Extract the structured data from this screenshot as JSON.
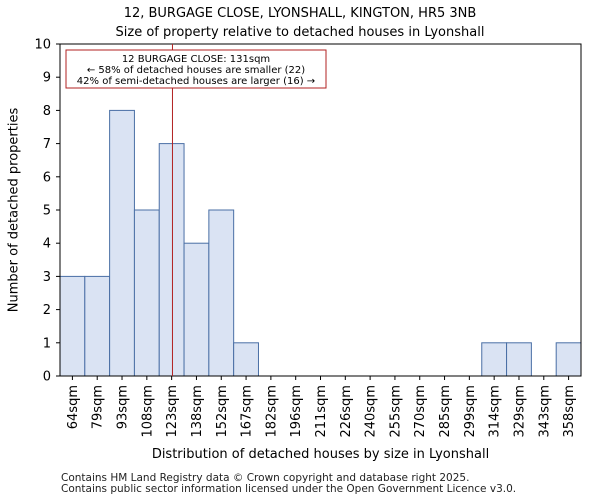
{
  "chart_data": {
    "type": "bar",
    "title_line1": "12, BURGAGE CLOSE, LYONSHALL, KINGTON, HR5 3NB",
    "title_line2": "Size of property relative to detached houses in Lyonshall",
    "xlabel": "Distribution of detached houses by size in Lyonshall",
    "ylabel": "Number of detached properties",
    "categories": [
      "64sqm",
      "79sqm",
      "93sqm",
      "108sqm",
      "123sqm",
      "138sqm",
      "152sqm",
      "167sqm",
      "182sqm",
      "196sqm",
      "211sqm",
      "226sqm",
      "240sqm",
      "255sqm",
      "270sqm",
      "285sqm",
      "299sqm",
      "314sqm",
      "329sqm",
      "343sqm",
      "358sqm"
    ],
    "bin_edges": [
      64,
      79,
      93,
      108,
      123,
      138,
      152,
      167,
      182,
      196,
      211,
      226,
      240,
      255,
      270,
      285,
      299,
      314,
      329,
      343,
      358,
      373
    ],
    "values": [
      3,
      3,
      8,
      5,
      7,
      4,
      5,
      1,
      0,
      0,
      0,
      0,
      0,
      0,
      0,
      0,
      0,
      1,
      1,
      0,
      1
    ],
    "ylim": [
      0,
      10
    ],
    "yticks": [
      0,
      1,
      2,
      3,
      4,
      5,
      6,
      7,
      8,
      9,
      10
    ],
    "bar_color": "#dae3f3",
    "bar_edge_color": "#4a6fa5",
    "marker": {
      "value": 131,
      "color": "#b22222",
      "line1": "12 BURGAGE CLOSE: 131sqm",
      "line2": "← 58% of detached houses are smaller (22)",
      "line3": "42% of semi-detached houses are larger (16) →"
    }
  },
  "footer": {
    "line1": "Contains HM Land Registry data © Crown copyright and database right 2025.",
    "line2": "Contains public sector information licensed under the Open Government Licence v3.0."
  }
}
